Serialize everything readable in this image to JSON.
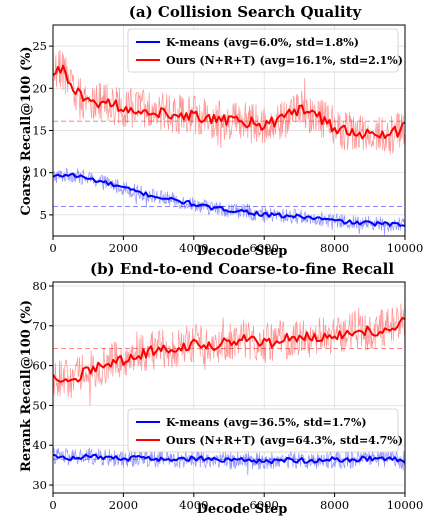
{
  "colors": {
    "kmeans": "#0000ff",
    "ours": "#ff0000",
    "kmeans_raw": "#8080ff",
    "ours_raw": "#ff8080",
    "grid": "#d9d9d9"
  },
  "chart_data": [
    {
      "type": "line",
      "title": "(a) Collision Search Quality",
      "xlabel": "Decode Step",
      "ylabel": "Coarse Recall@100 (%)",
      "xlim": [
        0,
        10000
      ],
      "ylim": [
        2.5,
        27.5
      ],
      "xticks": [
        "0",
        "2000",
        "4000",
        "6000",
        "8000",
        "10000"
      ],
      "yticks": [
        "5",
        "10",
        "15",
        "20",
        "25"
      ],
      "grid": true,
      "legend_position": "upper right",
      "series": [
        {
          "name": "K-means (avg=6.0%, std=1.8%)",
          "color": "#0000ff",
          "raw_color": "#8080ff",
          "mean_line": 6.0,
          "x": [
            0,
            500,
            1000,
            1500,
            2000,
            2500,
            3000,
            3500,
            4000,
            4500,
            5000,
            5500,
            6000,
            6500,
            7000,
            7500,
            8000,
            8500,
            9000,
            9500,
            10000
          ],
          "values": [
            9.5,
            9.8,
            9.3,
            8.8,
            8.2,
            7.6,
            7.1,
            6.7,
            6.3,
            5.8,
            5.6,
            5.4,
            5.0,
            4.9,
            4.8,
            4.6,
            4.3,
            4.1,
            4.0,
            3.9,
            3.8
          ],
          "noise_amplitude": 0.9
        },
        {
          "name": "Ours (N+R+T) (avg=16.1%, std=2.1%)",
          "color": "#ff0000",
          "raw_color": "#ff8080",
          "mean_line": 16.1,
          "x": [
            0,
            250,
            500,
            1000,
            1500,
            2000,
            2500,
            3000,
            3500,
            4000,
            4500,
            5000,
            5500,
            6000,
            6500,
            7000,
            7500,
            8000,
            8500,
            9000,
            9500,
            10000
          ],
          "values": [
            21.5,
            22.5,
            20.0,
            18.5,
            18.2,
            17.8,
            17.5,
            17.2,
            17.0,
            16.8,
            16.4,
            16.2,
            16.0,
            15.6,
            16.3,
            17.5,
            16.8,
            15.2,
            14.8,
            14.5,
            14.4,
            15.3
          ],
          "noise_amplitude": 2.4
        }
      ]
    },
    {
      "type": "line",
      "title": "(b) End-to-end Coarse-to-fine Recall",
      "xlabel": "Decode Step",
      "ylabel": "Rerank Recall@100 (%)",
      "xlim": [
        0,
        10000
      ],
      "ylim": [
        28,
        81
      ],
      "xticks": [
        "0",
        "2000",
        "4000",
        "6000",
        "8000",
        "10000"
      ],
      "yticks": [
        "30",
        "40",
        "50",
        "60",
        "70",
        "80"
      ],
      "grid": true,
      "legend_position": "lower right",
      "series": [
        {
          "name": "K-means (avg=36.5%, std=1.7%)",
          "color": "#0000ff",
          "raw_color": "#8080ff",
          "mean_line": 36.5,
          "x": [
            0,
            500,
            1000,
            1500,
            2000,
            2500,
            3000,
            3500,
            4000,
            4500,
            5000,
            5500,
            6000,
            6500,
            7000,
            7500,
            8000,
            8500,
            9000,
            9500,
            10000
          ],
          "values": [
            37.5,
            36.8,
            37.2,
            36.9,
            36.5,
            37.0,
            36.6,
            36.3,
            36.8,
            36.4,
            36.2,
            36.6,
            35.8,
            36.4,
            36.2,
            36.0,
            36.5,
            36.3,
            36.8,
            36.6,
            36.2
          ],
          "noise_amplitude": 2.2
        },
        {
          "name": "Ours (N+R+T) (avg=64.3%, std=4.7%)",
          "color": "#ff0000",
          "raw_color": "#ff8080",
          "mean_line": 64.3,
          "x": [
            0,
            500,
            1000,
            1500,
            2000,
            2500,
            3000,
            3500,
            4000,
            4500,
            5000,
            5500,
            6000,
            6500,
            7000,
            7500,
            8000,
            8500,
            9000,
            9500,
            10000
          ],
          "values": [
            57.5,
            56.5,
            58.5,
            60.5,
            61.5,
            63.0,
            64.0,
            64.5,
            65.5,
            65.0,
            66.0,
            66.5,
            65.5,
            66.5,
            67.0,
            67.5,
            67.5,
            68.5,
            68.5,
            69.5,
            71.0
          ],
          "noise_amplitude": 5.0
        }
      ]
    }
  ]
}
